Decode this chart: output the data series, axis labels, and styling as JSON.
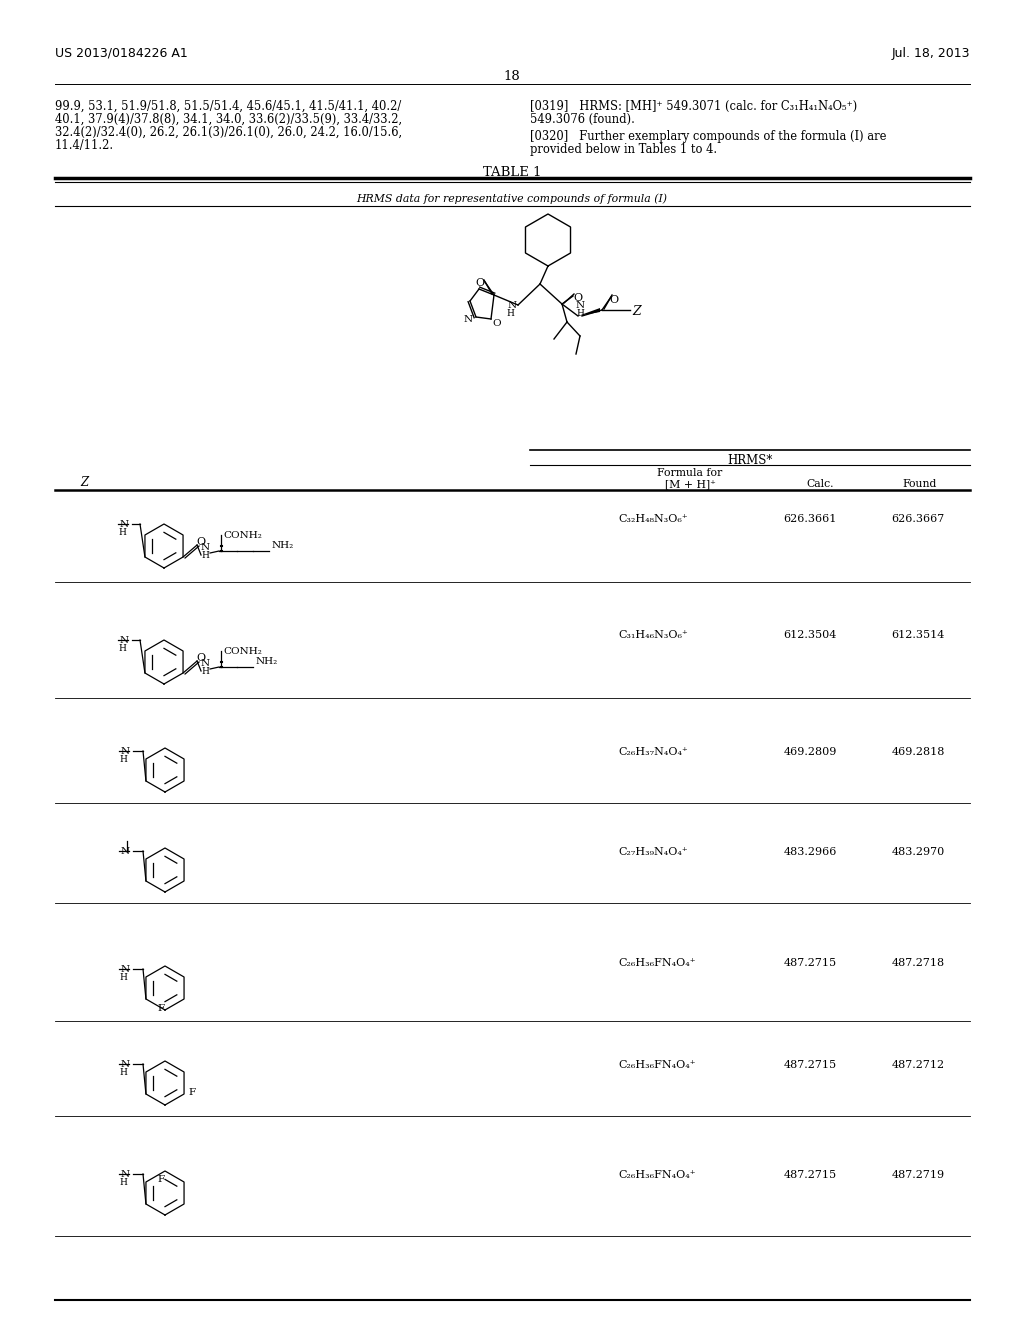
{
  "page_header_left": "US 2013/0184226 A1",
  "page_header_right": "Jul. 18, 2013",
  "page_number": "18",
  "left_text_lines": [
    "99.9, 53.1, 51.9/51.8, 51.5/51.4, 45.6/45.1, 41.5/41.1, 40.2/",
    "40.1, 37.9(4)/37.8(8), 34.1, 34.0, 33.6(2)/33.5(9), 33.4/33.2,",
    "32.4(2)/32.4(0), 26.2, 26.1(3)/26.1(0), 26.0, 24.2, 16.0/15.6,",
    "11.4/11.2."
  ],
  "right_text_319_a": "[0319]   HRMS: [MH]⁺ 549.3071 (calc. for C₃₁H₄₁N₄O₅⁺)",
  "right_text_319_b": "549.3076 (found).",
  "right_text_320_a": "[0320]   Further exemplary compounds of the formula (I) are",
  "right_text_320_b": "provided below in Tables 1 to 4.",
  "table_title": "TABLE 1",
  "table_subtitle": "HRMS data for representative compounds of formula (I)",
  "hrms_label": "HRMS*",
  "col_z": "Z",
  "col_formula_1": "Formula for",
  "col_formula_2": "[M + H]⁺",
  "col_calc": "Calc.",
  "col_found": "Found",
  "rows": [
    {
      "formula": "C₃₂H₄₈N₃O₆⁺",
      "calc": "626.3661",
      "found": "626.3667"
    },
    {
      "formula": "C₃₁H₄₆N₃O₆⁺",
      "calc": "612.3504",
      "found": "612.3514"
    },
    {
      "formula": "C₂₆H₃₇N₄O₄⁺",
      "calc": "469.2809",
      "found": "469.2818"
    },
    {
      "formula": "C₂₇H₃₉N₄O₄⁺",
      "calc": "483.2966",
      "found": "483.2970"
    },
    {
      "formula": "C₂₆H₃₆FN₄O₄⁺",
      "calc": "487.2715",
      "found": "487.2718"
    },
    {
      "formula": "C₂₆H₃₆FN₄O₄⁺",
      "calc": "487.2715",
      "found": "487.2712"
    },
    {
      "formula": "C₂₆H₃₆FN₄O₄⁺",
      "calc": "487.2715",
      "found": "487.2719"
    }
  ]
}
